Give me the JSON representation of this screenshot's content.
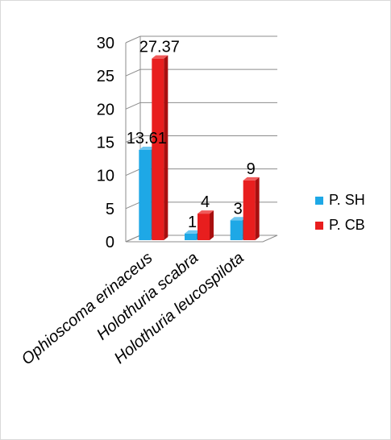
{
  "chart_data": {
    "type": "bar",
    "style": "3d-clustered-column",
    "categories": [
      "Ophioscoma erinaceus",
      "Holothuria scabra",
      "Holothuria leucospilota"
    ],
    "series": [
      {
        "name": "P. SH",
        "color": "#1ea8e6",
        "side_color": "#0f7fb3",
        "top_color": "#6cc6f0",
        "values": [
          13.61,
          1,
          3
        ],
        "labels": [
          "13.61",
          "1",
          "3"
        ]
      },
      {
        "name": "P. CB",
        "color": "#e81e1e",
        "side_color": "#a80f0f",
        "top_color": "#f05a5a",
        "values": [
          27.37,
          4,
          9
        ],
        "labels": [
          "27.37",
          "4",
          "9"
        ]
      }
    ],
    "ylim": [
      0,
      30
    ],
    "yticks": [
      0,
      5,
      10,
      15,
      20,
      25,
      30
    ],
    "ytick_labels": [
      "0",
      "5",
      "10",
      "15",
      "20",
      "25",
      "30"
    ],
    "grid": true,
    "legend": "right",
    "title": "",
    "xlabel": "",
    "ylabel": ""
  }
}
